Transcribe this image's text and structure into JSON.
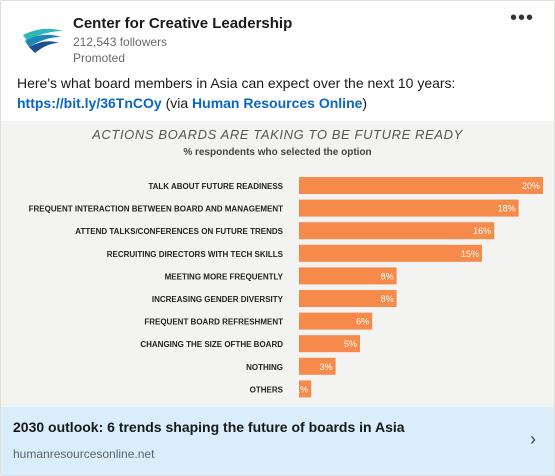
{
  "post": {
    "company": "Center for Creative Leadership",
    "followers": "212,543 followers",
    "promoted": "Promoted",
    "more_icon": "•••",
    "text_intro": "Here's what board members in Asia can expect over the next 10 years:",
    "link": "https://bit.ly/36TnCOy",
    "via_prefix": " (via ",
    "via_source": "Human Resources Online",
    "via_suffix": ")"
  },
  "colors": {
    "bar": "#f58a4b",
    "link": "#0a66c2",
    "link_bar_bg": "#d9eefa"
  },
  "chart_data": {
    "type": "bar",
    "orientation": "horizontal",
    "title": "ACTIONS BOARDS ARE TAKING TO BE FUTURE READY",
    "subtitle": "% respondents who selected the option",
    "categories": [
      "TALK ABOUT FUTURE READINESS",
      "FREQUENT INTERACTION BETWEEN BOARD AND MANAGEMENT",
      "ATTEND TALKS/CONFERENCES ON FUTURE TRENDS",
      "RECRUITING DIRECTORS WITH TECH SKILLS",
      "MEETING MORE FREQUENTLY",
      "INCREASING GENDER DIVERSITY",
      "FREQUENT BOARD REFRESHMENT",
      "CHANGING THE SIZE OFTHE BOARD",
      "NOTHING",
      "OTHERS"
    ],
    "values": [
      20,
      18,
      16,
      15,
      8,
      8,
      6,
      5,
      3,
      1
    ],
    "labels": [
      "20%",
      "18%",
      "16%",
      "15%",
      "8%",
      "8%",
      "6%",
      "5%",
      "3%",
      "1%"
    ],
    "xlim": [
      0,
      20
    ]
  },
  "link_preview": {
    "title": "2030 outlook: 6 trends shaping the future of boards in Asia",
    "domain": "humanresourcesonline.net",
    "chevron": "›"
  }
}
